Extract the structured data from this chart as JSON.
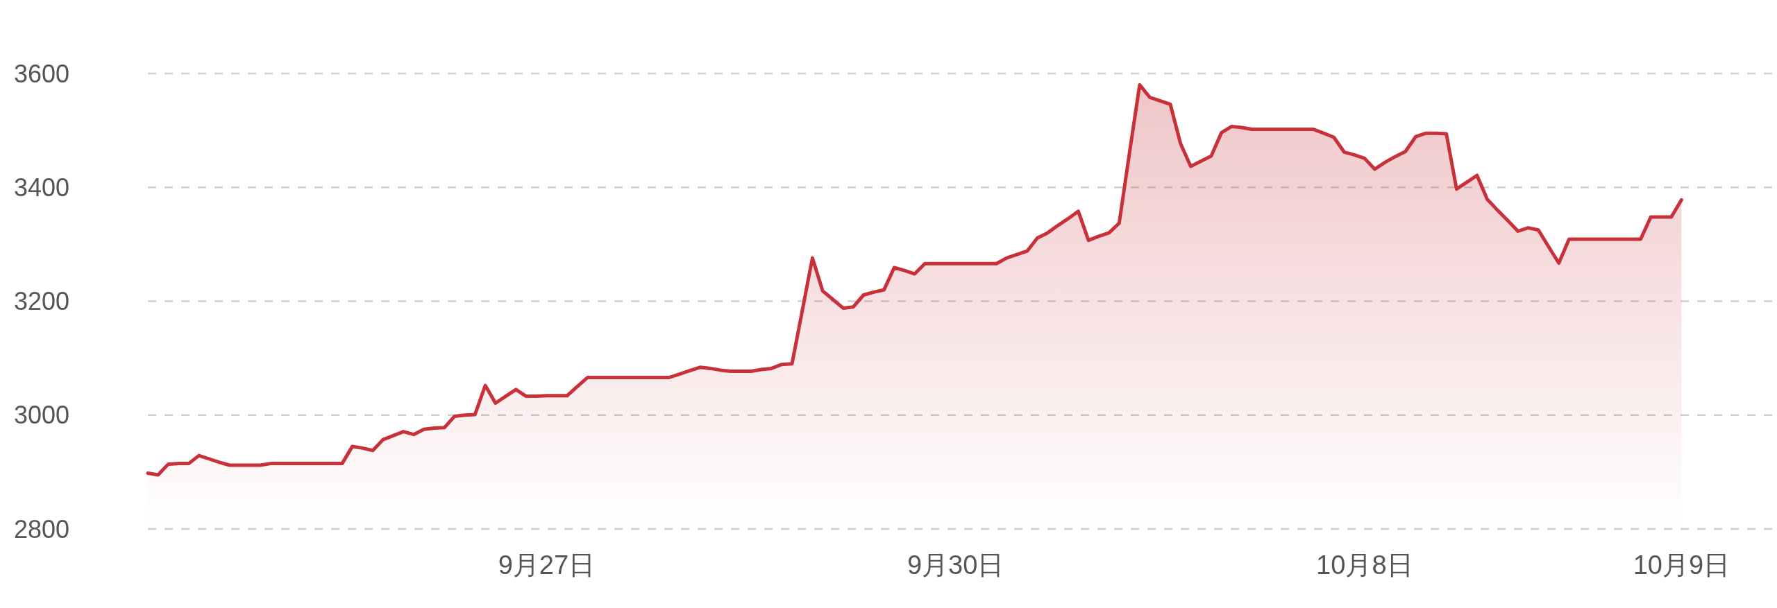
{
  "chart_data": {
    "type": "area",
    "color": "#c8313a",
    "grid": "y",
    "categories": [
      null,
      null,
      null,
      null,
      null,
      null,
      null,
      null,
      null,
      null,
      null,
      null,
      null,
      null,
      null,
      null,
      null,
      null,
      null,
      null,
      null,
      null,
      null,
      null,
      null,
      null,
      null,
      null,
      null,
      null,
      null,
      null,
      null,
      null,
      null,
      null,
      null,
      null,
      null,
      "9月27日",
      null,
      null,
      null,
      null,
      null,
      null,
      null,
      null,
      null,
      null,
      null,
      null,
      null,
      null,
      null,
      null,
      null,
      null,
      null,
      null,
      null,
      null,
      null,
      null,
      null,
      null,
      null,
      null,
      null,
      null,
      null,
      null,
      null,
      null,
      null,
      null,
      null,
      null,
      null,
      "9月30日",
      null,
      null,
      null,
      null,
      null,
      null,
      null,
      null,
      null,
      null,
      null,
      null,
      null,
      null,
      null,
      null,
      null,
      null,
      null,
      null,
      null,
      null,
      null,
      null,
      null,
      null,
      null,
      null,
      null,
      null,
      null,
      null,
      null,
      null,
      null,
      null,
      null,
      null,
      null,
      "10月8日",
      null,
      null,
      null,
      null,
      null,
      null,
      null,
      null,
      null,
      null,
      null,
      null,
      null,
      null,
      null,
      null,
      null,
      null,
      null,
      null,
      null,
      null,
      null,
      null,
      null,
      null,
      null,
      null,
      null,
      null,
      "10月9日",
      null,
      null,
      null,
      null,
      null,
      null,
      null,
      null,
      null
    ],
    "values": [
      2898,
      2895,
      2914,
      2915,
      2915,
      2929,
      2923,
      2917,
      2912,
      2912,
      2912,
      2912,
      2915,
      2915,
      2915,
      2915,
      2915,
      2915,
      2915,
      2915,
      2945,
      2942,
      2938,
      2957,
      2964,
      2971,
      2966,
      2975,
      2977,
      2978,
      2998,
      3000,
      3001,
      3052,
      3021,
      3033,
      3045,
      3033,
      3033,
      3034,
      3034,
      3034,
      3050,
      3066,
      3066,
      3066,
      3066,
      3066,
      3066,
      3066,
      3066,
      3066,
      3072,
      3078,
      3084,
      3082,
      3079,
      3077,
      3077,
      3077,
      3080,
      3082,
      3089,
      3090,
      3183,
      3276,
      3218,
      3203,
      3188,
      3190,
      3211,
      3216,
      3220,
      3259,
      3254,
      3248,
      3266,
      3266,
      3266,
      3266,
      3266,
      3266,
      3266,
      3266,
      3276,
      3282,
      3288,
      3311,
      3320,
      3333,
      3345,
      3358,
      3307,
      3314,
      3320,
      3337,
      3459,
      3580,
      3558,
      3552,
      3546,
      3477,
      3437,
      3446,
      3455,
      3496,
      3507,
      3505,
      3502,
      3502,
      3502,
      3502,
      3502,
      3502,
      3502,
      3495,
      3488,
      3462,
      3457,
      3451,
      3432,
      3444,
      3454,
      3463,
      3489,
      3495,
      3495,
      3494,
      3397,
      3409,
      3421,
      3379,
      3360,
      3342,
      3323,
      3329,
      3325,
      3296,
      3267,
      3309,
      3309,
      3309,
      3309,
      3309,
      3309,
      3309,
      3309,
      3348,
      3348,
      3348,
      3378,
      null,
      null,
      null,
      null,
      null,
      null,
      null,
      null,
      null
    ],
    "ylim": [
      2800,
      3600
    ],
    "yticks": [
      2800,
      3000,
      3200,
      3400,
      3600
    ]
  }
}
